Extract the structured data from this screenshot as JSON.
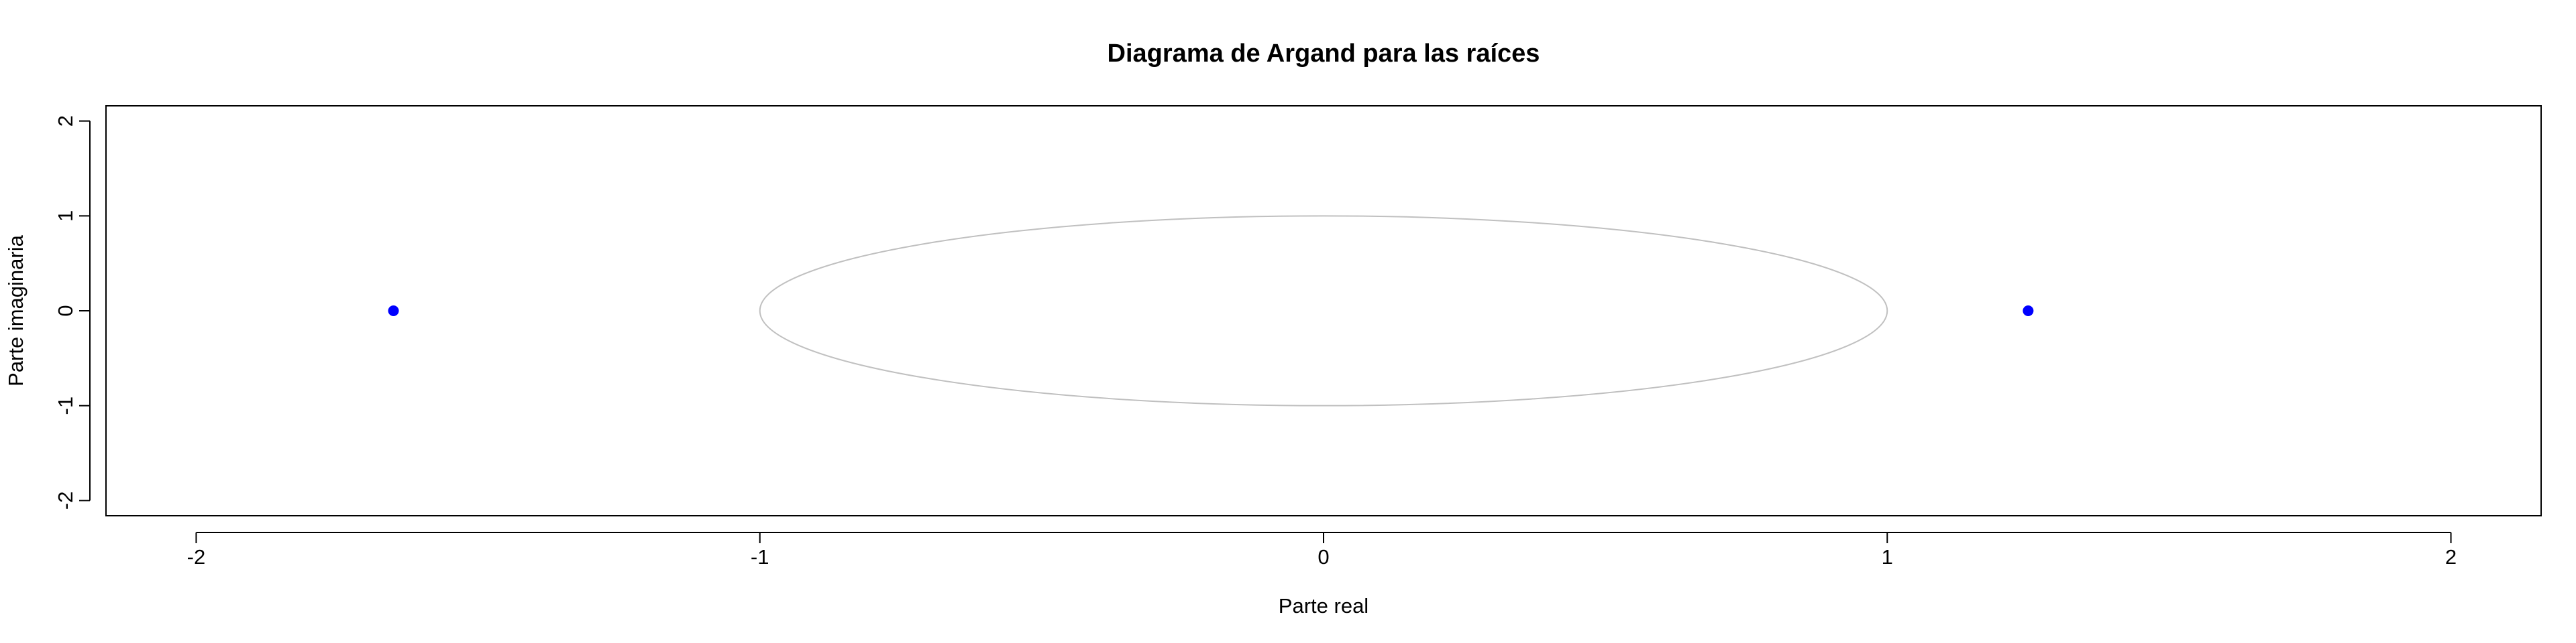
{
  "chart_data": {
    "type": "scatter",
    "title": "Diagrama de Argand para las raíces",
    "xlabel": "Parte real",
    "ylabel": "Parte imaginaria",
    "xlim": [
      -2.16,
      2.16
    ],
    "ylim": [
      -2.16,
      2.16
    ],
    "xticks": [
      -2,
      -1,
      0,
      1,
      2
    ],
    "yticks": [
      -2,
      -1,
      0,
      1,
      2
    ],
    "xtick_labels": [
      "-2",
      "-1",
      "0",
      "1",
      "2"
    ],
    "ytick_labels": [
      "-2",
      "-1",
      "0",
      "1",
      "2"
    ],
    "grid": false,
    "series": [
      {
        "points": [
          {
            "x": -1.65,
            "y": 0
          },
          {
            "x": 1.25,
            "y": 0
          }
        ],
        "color": "#0000ff"
      }
    ],
    "reference_curves": [
      {
        "type": "unit-circle",
        "center": [
          0,
          0
        ],
        "radius": 1,
        "color": "#c0c0c0"
      }
    ]
  }
}
